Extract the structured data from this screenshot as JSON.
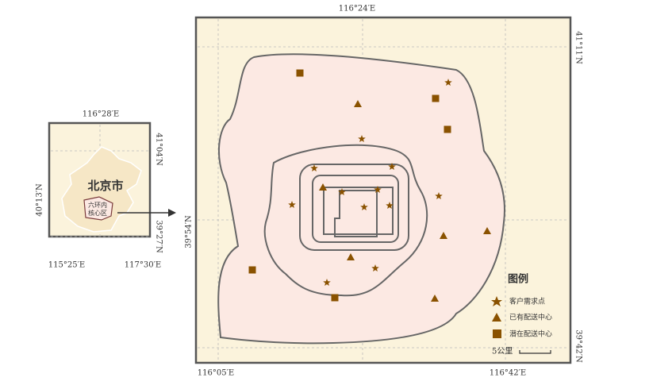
{
  "inset": {
    "coords": {
      "top": "116°28′E",
      "left": "40°13′N",
      "right_top": "41°04′N",
      "right_bottom": "39°27′N",
      "bottom_left": "115°25′E",
      "bottom_right": "117°30′E"
    },
    "city": "北京市",
    "core": [
      "六环内",
      "核心区"
    ]
  },
  "main": {
    "coords": {
      "top": "116°24′E",
      "right_top": "41°11′N",
      "right_bottom": "39°42′N",
      "left": "39°54′N",
      "bottom_left": "116°05′E",
      "bottom_right": "116°42′E"
    }
  },
  "legend": {
    "title": "图例",
    "items": [
      "客户需求点",
      "已有配送中心",
      "潜在配送中心"
    ]
  },
  "scale": "5公里"
}
